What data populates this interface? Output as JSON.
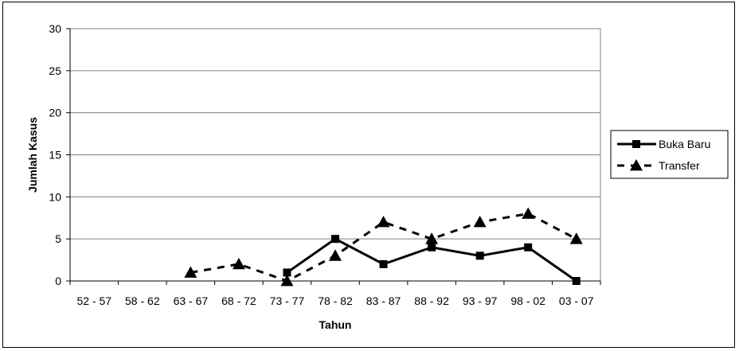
{
  "chart_data": {
    "type": "line",
    "title": "",
    "xlabel": "Tahun",
    "ylabel": "Jumlah Kasus",
    "categories": [
      "52 - 57",
      "58 - 62",
      "63 - 67",
      "68 - 72",
      "73 - 77",
      "78 - 82",
      "83 - 87",
      "88 - 92",
      "93 - 97",
      "98 - 02",
      "03 - 07"
    ],
    "ylim": [
      0,
      30
    ],
    "yticks": [
      0,
      5,
      10,
      15,
      20,
      25,
      30
    ],
    "grid": "horizontal",
    "legend_position": "right",
    "series": [
      {
        "name": "Buka Baru",
        "marker": "square",
        "line_style": "solid",
        "color": "#000000",
        "values": [
          null,
          null,
          null,
          null,
          1,
          5,
          2,
          4,
          3,
          4,
          0
        ]
      },
      {
        "name": "Transfer",
        "marker": "triangle",
        "line_style": "dashed",
        "color": "#000000",
        "values": [
          null,
          null,
          1,
          2,
          0,
          3,
          7,
          5,
          7,
          8,
          5
        ]
      }
    ]
  }
}
